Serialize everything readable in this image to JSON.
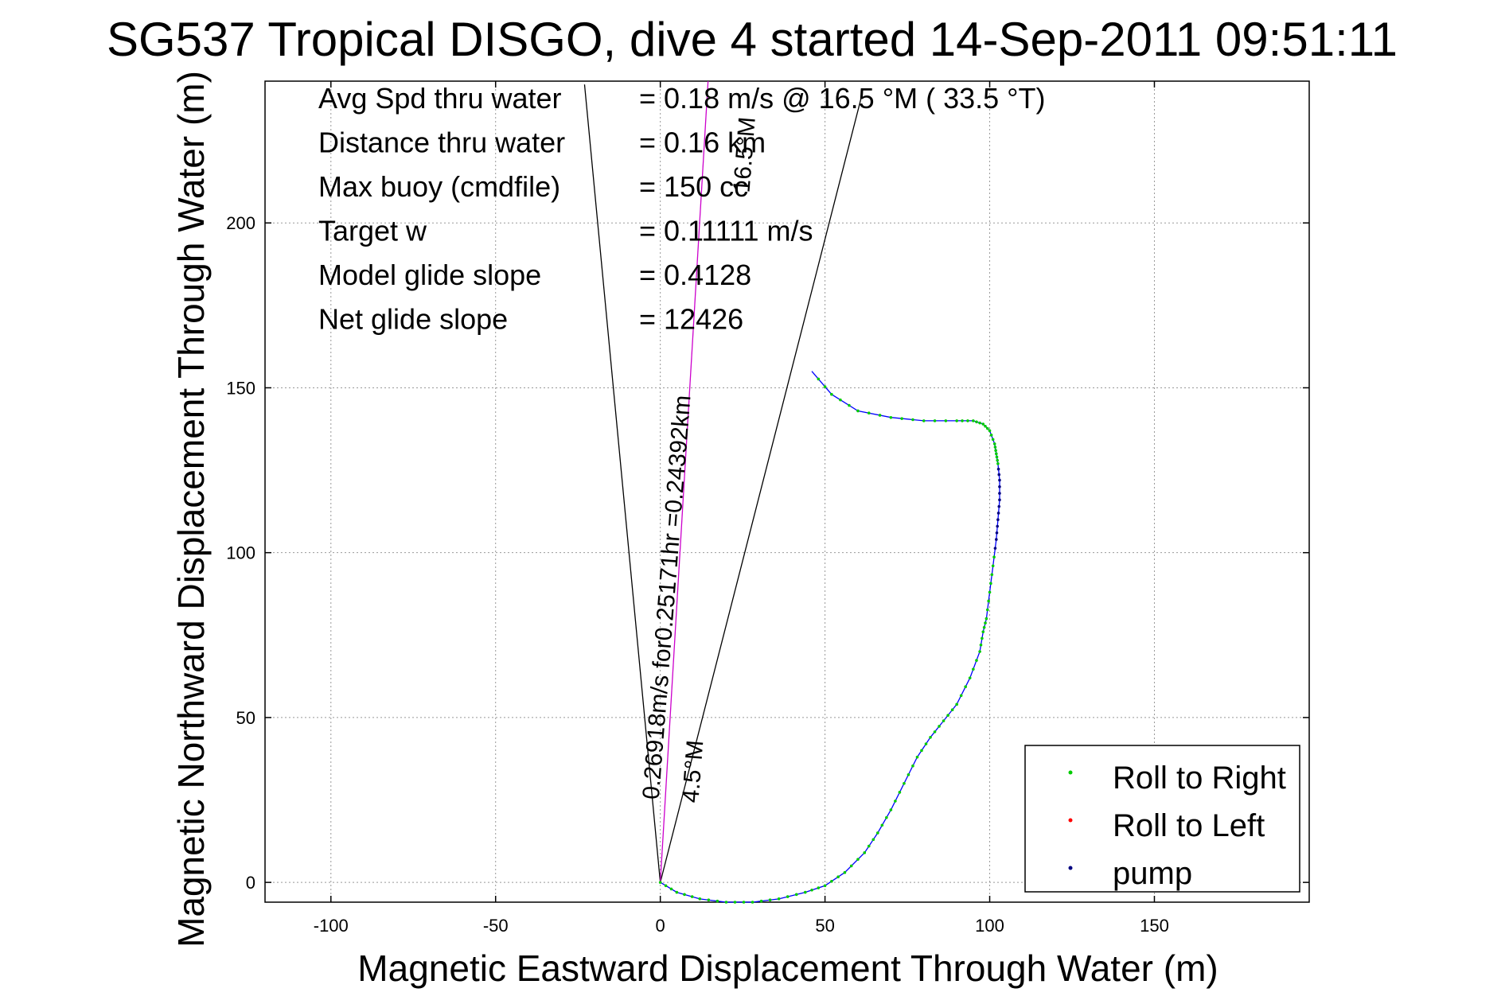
{
  "chart_data": {
    "type": "line",
    "title": "SG537 Tropical DISGO, dive 4 started 14-Sep-2011 09:51:11",
    "xlabel": "Magnetic Eastward Displacement Through Water (m)",
    "ylabel": "Magnetic Northward Displacement Through Water (m)",
    "xlim": [
      -120,
      197
    ],
    "ylim": [
      -6,
      243
    ],
    "xticks": [
      -100,
      -50,
      0,
      50,
      100,
      150
    ],
    "yticks": [
      0,
      50,
      100,
      150,
      200
    ],
    "grid": true,
    "annotations": [
      {
        "label": "Avg Spd thru water",
        "value": "=  0.18 m/s @  16.5 °M ( 33.5 °T)"
      },
      {
        "label": "Distance thru water",
        "value": "=  0.16 km"
      },
      {
        "label": "Max buoy (cmdfile)",
        "value": "= 150 cc"
      },
      {
        "label": "Target w",
        "value": "= 0.11111 m/s"
      },
      {
        "label": "Model glide slope",
        "value": "= 0.4128"
      },
      {
        "label": "Net glide slope",
        "value": "= 12426"
      }
    ],
    "diagonal_labels": [
      {
        "text": "0.26918m/s for0.25171hr =0.24392km",
        "angle_deg": 4.5
      },
      {
        "text": "4.5°M",
        "angle_deg": 4.5
      },
      {
        "text": "16.5°M",
        "angle_deg": 16.5
      }
    ],
    "lines": [
      {
        "name": "cone-left",
        "color": "#000000",
        "x": [
          0,
          -23
        ],
        "y": [
          0,
          242
        ]
      },
      {
        "name": "cone-right",
        "color": "#000000",
        "x": [
          0,
          61
        ],
        "y": [
          0,
          238
        ]
      },
      {
        "name": "heading",
        "color": "#cc00cc",
        "x": [
          0,
          14.5
        ],
        "y": [
          0,
          243
        ]
      }
    ],
    "track": {
      "name": "track",
      "color": "#0000ff",
      "x": [
        0,
        5,
        12,
        20,
        28,
        36,
        44,
        50,
        56,
        62,
        66,
        70,
        74,
        78,
        82,
        86,
        90,
        94,
        97,
        98,
        99,
        100,
        101,
        102,
        102.5,
        103,
        103,
        102.5,
        102,
        101.5,
        100,
        98,
        95,
        90,
        80,
        70,
        60,
        52,
        46
      ],
      "y": [
        0,
        -3,
        -5,
        -6,
        -6,
        -5,
        -3,
        -1,
        3,
        9,
        15,
        22,
        30,
        38,
        44,
        49,
        54,
        62,
        70,
        76,
        80,
        88,
        96,
        104,
        110,
        116,
        122,
        127,
        130,
        133,
        137,
        139,
        140,
        140,
        140,
        141,
        143,
        148,
        155
      ]
    },
    "legend": {
      "placement": "bottom-right",
      "entries": [
        {
          "name": "Roll to Right",
          "color": "#00cc00"
        },
        {
          "name": "Roll to Left",
          "color": "#ff0000"
        },
        {
          "name": "pump",
          "color": "#000080"
        }
      ]
    }
  }
}
